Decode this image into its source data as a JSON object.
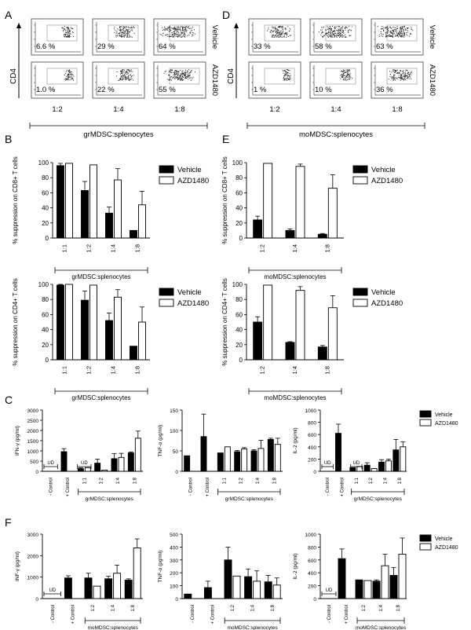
{
  "chart_data": [
    {
      "id": "A",
      "type": "flow-cytometry-panels",
      "panel_label": "A",
      "ylabel": "CD4",
      "row_labels": [
        "Vehicle",
        "AZD1480"
      ],
      "col_labels": [
        "1:2",
        "1:4",
        "1:8"
      ],
      "percent_labels": [
        [
          "6.6 %",
          "29 %",
          "64 %"
        ],
        [
          "1.0 %",
          "22 %",
          "55 %"
        ]
      ],
      "values": [
        [
          6.6,
          29,
          64
        ],
        [
          1.0,
          22,
          55
        ]
      ],
      "bracket_label": "grMDSC:splenocytes"
    },
    {
      "id": "D",
      "type": "flow-cytometry-panels",
      "panel_label": "D",
      "ylabel": "CD4",
      "row_labels": [
        "Vehicle",
        "AZD1480"
      ],
      "col_labels": [
        "1:2",
        "1:4",
        "1:8"
      ],
      "percent_labels": [
        [
          "33 %",
          "58 %",
          "63 %"
        ],
        [
          "1 %",
          "10 %",
          "36 %"
        ]
      ],
      "values": [
        [
          33,
          58,
          63
        ],
        [
          1,
          10,
          36
        ]
      ],
      "bracket_label": "moMDSC:splenocytes"
    },
    {
      "id": "B1",
      "type": "bar",
      "panel_label": "B",
      "ylabel": "% suppression on CD8+ T cells",
      "categories": [
        "1:1",
        "1:2",
        "1:4",
        "1:8"
      ],
      "series": [
        {
          "name": "Vehicle",
          "values": [
            96,
            63,
            33,
            10
          ],
          "errors": [
            3,
            12,
            8,
            0
          ]
        },
        {
          "name": "AZD1480",
          "values": [
            99,
            97,
            77,
            44
          ],
          "errors": [
            0,
            0,
            15,
            18
          ]
        }
      ],
      "ylim": [
        0,
        100
      ],
      "yticks": [
        0,
        20,
        40,
        60,
        80,
        100
      ],
      "xlabel": "grMDSC:splenocytes",
      "legend": [
        "Vehicle",
        "AZD1480"
      ]
    },
    {
      "id": "B2",
      "type": "bar",
      "ylabel": "% suppression on CD4+ T cells",
      "categories": [
        "1:1",
        "1:2",
        "1:4",
        "1:8"
      ],
      "series": [
        {
          "name": "Vehicle",
          "values": [
            99,
            79,
            52,
            18
          ],
          "errors": [
            1,
            12,
            10,
            0
          ]
        },
        {
          "name": "AZD1480",
          "values": [
            100,
            99,
            83,
            50
          ],
          "errors": [
            0,
            0,
            10,
            20
          ]
        }
      ],
      "ylim": [
        0,
        100
      ],
      "yticks": [
        0,
        20,
        40,
        60,
        80,
        100
      ],
      "xlabel": "grMDSC:splenocytes",
      "legend": [
        "Vehicle",
        "AZD1480"
      ]
    },
    {
      "id": "E1",
      "type": "bar",
      "panel_label": "E",
      "ylabel": "% suppression on CD8+ T cells",
      "categories": [
        "1:2",
        "1:4",
        "1:8"
      ],
      "series": [
        {
          "name": "Vehicle",
          "values": [
            24,
            10,
            5
          ],
          "errors": [
            5,
            2,
            1
          ]
        },
        {
          "name": "AZD1480",
          "values": [
            99,
            95,
            66
          ],
          "errors": [
            0,
            3,
            18
          ]
        }
      ],
      "ylim": [
        0,
        100
      ],
      "yticks": [
        0,
        20,
        40,
        60,
        80,
        100
      ],
      "xlabel": "moMDSC:splenocytes",
      "legend": [
        "Vehicle",
        "AZD1480"
      ]
    },
    {
      "id": "E2",
      "type": "bar",
      "ylabel": "% suppression on CD4+ T cells",
      "categories": [
        "1:2",
        "1:4",
        "1:8"
      ],
      "series": [
        {
          "name": "Vehicle",
          "values": [
            50,
            23,
            17
          ],
          "errors": [
            7,
            1,
            2
          ]
        },
        {
          "name": "AZD1480",
          "values": [
            99,
            92,
            69
          ],
          "errors": [
            0,
            5,
            16
          ]
        }
      ],
      "ylim": [
        0,
        100
      ],
      "yticks": [
        0,
        20,
        40,
        60,
        80,
        100
      ],
      "xlabel": "moMDSC:splenocytes",
      "legend": [
        "Vehicle",
        "AZD1480"
      ]
    },
    {
      "id": "C1",
      "type": "bar",
      "panel_label": "C",
      "ylabel": "IFN-γ (pg/ml)",
      "categories": [
        "- Control",
        "+ Control",
        "1:1",
        "1:2",
        "1:4",
        "1:8"
      ],
      "series": [
        {
          "name": "Vehicle",
          "values": [
            null,
            960,
            130,
            400,
            620,
            900
          ],
          "errors": [
            0,
            150,
            40,
            200,
            250,
            50
          ]
        },
        {
          "name": "AZD1480",
          "values": [
            null,
            null,
            180,
            60,
            680,
            1620
          ],
          "errors": [
            0,
            0,
            0,
            0,
            200,
            350
          ]
        }
      ],
      "ud_labels": [
        "UD",
        "UD"
      ],
      "ylim": [
        0,
        3000
      ],
      "yticks": [
        0,
        500,
        1000,
        1500,
        2000,
        2500,
        3000
      ],
      "xlabel": "grMDSC:splenocytes"
    },
    {
      "id": "C2",
      "type": "bar",
      "ylabel": "TNF-α (pg/ml)",
      "categories": [
        "- Control",
        "+ Control",
        "1:1",
        "1:2",
        "1:4",
        "1:8"
      ],
      "series": [
        {
          "name": "Vehicle",
          "values": [
            38,
            85,
            45,
            48,
            50,
            78
          ],
          "errors": [
            0,
            55,
            0,
            3,
            3,
            3
          ]
        },
        {
          "name": "AZD1480",
          "values": [
            null,
            null,
            60,
            55,
            56,
            66
          ],
          "errors": [
            0,
            0,
            0,
            3,
            20,
            15
          ]
        }
      ],
      "ylim": [
        0,
        150
      ],
      "yticks": [
        0,
        50,
        100,
        150
      ],
      "xlabel": "grMDSC:splenocytes"
    },
    {
      "id": "C3",
      "type": "bar",
      "ylabel": "IL-2 (pg/ml)",
      "categories": [
        "- Control",
        "+ Control",
        "1:1",
        "1:2",
        "1:4",
        "1:8"
      ],
      "series": [
        {
          "name": "Vehicle",
          "values": [
            null,
            620,
            60,
            100,
            150,
            350
          ],
          "errors": [
            0,
            150,
            0,
            40,
            40,
            170
          ]
        },
        {
          "name": "AZD1480",
          "values": [
            null,
            null,
            80,
            45,
            170,
            400
          ],
          "errors": [
            0,
            0,
            0,
            0,
            30,
            80
          ]
        }
      ],
      "ud_labels": [
        "UD",
        "UD"
      ],
      "ylim": [
        0,
        1000
      ],
      "yticks": [
        0,
        200,
        400,
        600,
        800,
        1000
      ],
      "xlabel": "grMDSC:splenocytes",
      "legend": [
        "Vehicle",
        "AZD1480"
      ]
    },
    {
      "id": "F1",
      "type": "bar",
      "panel_label": "F",
      "ylabel": "INF-γ (pg/ml)",
      "categories": [
        "- Control",
        "+ Control",
        "1:2",
        "1:4",
        "1:8"
      ],
      "series": [
        {
          "name": "Vehicle",
          "values": [
            null,
            960,
            960,
            920,
            860
          ],
          "errors": [
            0,
            100,
            220,
            120,
            60
          ]
        },
        {
          "name": "AZD1480",
          "values": [
            null,
            null,
            580,
            1180,
            2360
          ],
          "errors": [
            0,
            0,
            0,
            380,
            420
          ]
        }
      ],
      "ud_labels": [
        "UD"
      ],
      "ylim": [
        0,
        3000
      ],
      "yticks": [
        0,
        1000,
        2000,
        3000
      ],
      "xlabel": "moMDSC:splenocytes"
    },
    {
      "id": "F2",
      "type": "bar",
      "ylabel": "TNF-α (pg/ml)",
      "categories": [
        "- Control",
        "+ Control",
        "1:2",
        "1:4",
        "1:8"
      ],
      "series": [
        {
          "name": "Vehicle",
          "values": [
            35,
            85,
            300,
            170,
            130
          ],
          "errors": [
            0,
            50,
            100,
            60,
            50
          ]
        },
        {
          "name": "AZD1480",
          "values": [
            null,
            null,
            175,
            135,
            105
          ],
          "errors": [
            0,
            0,
            0,
            80,
            55
          ]
        }
      ],
      "ylim": [
        0,
        500
      ],
      "yticks": [
        0,
        100,
        200,
        300,
        400,
        500
      ],
      "xlabel": "moMDSC:splenocytes"
    },
    {
      "id": "F3",
      "type": "bar",
      "ylabel": "IL-2 (pg/ml)",
      "categories": [
        "- Control",
        "+ Control",
        "1:2",
        "1:4",
        "1:8"
      ],
      "series": [
        {
          "name": "Vehicle",
          "values": [
            null,
            620,
            290,
            270,
            360
          ],
          "errors": [
            0,
            150,
            0,
            20,
            120
          ]
        },
        {
          "name": "AZD1480",
          "values": [
            null,
            null,
            280,
            510,
            690
          ],
          "errors": [
            0,
            0,
            0,
            180,
            250
          ]
        }
      ],
      "ud_labels": [
        "UD"
      ],
      "ylim": [
        0,
        1000
      ],
      "yticks": [
        0,
        200,
        400,
        600,
        800,
        1000
      ],
      "xlabel": "moMDSC:splenocytes",
      "legend": [
        "Vehicle",
        "AZD1480"
      ]
    }
  ]
}
